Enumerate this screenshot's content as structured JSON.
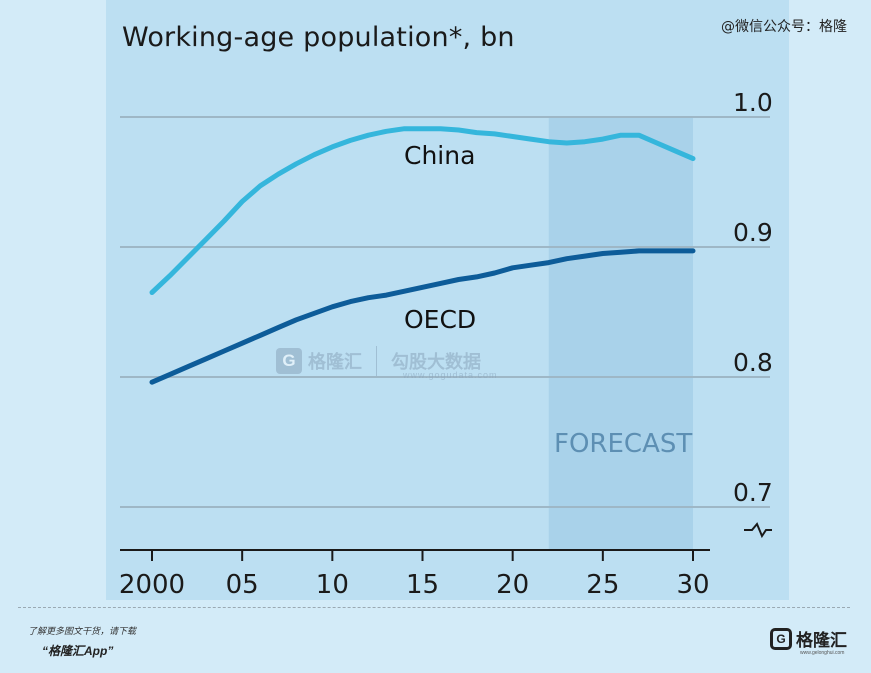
{
  "credit": "@微信公众号：格隆",
  "watermark": {
    "brand": "格隆汇",
    "partner": "勾股大数据",
    "url": "www.gogudata.com"
  },
  "footer": {
    "line1": "了解更多图文干货，请下载",
    "line2": "“格隆汇App”",
    "logo_text": "格隆汇",
    "logo_letter": "G",
    "logo_url": "www.gelonghui.com"
  },
  "colors": {
    "china": "#35b6dc",
    "oecd": "#0d5c99",
    "forecast_shade": "#a9d2ea",
    "gridline": "#9eb7c6",
    "axis": "#1a1a1a",
    "forecast_text": "#5d8fb3"
  },
  "chart_data": {
    "type": "line",
    "title": "Working-age population*, bn",
    "xlim": [
      2000,
      2030
    ],
    "ylim": [
      0.7,
      1.0
    ],
    "xticks": [
      2000,
      2005,
      2010,
      2015,
      2020,
      2025,
      2030
    ],
    "xtick_labels": [
      "2000",
      "05",
      "10",
      "15",
      "20",
      "25",
      "30"
    ],
    "yticks": [
      0.7,
      0.8,
      0.9,
      1.0
    ],
    "ytick_labels": [
      "0.7",
      "0.8",
      "0.9",
      "1.0"
    ],
    "grid": true,
    "axis_break": true,
    "forecast": {
      "label": "FORECAST",
      "from": 2022,
      "to": 2030
    },
    "series": [
      {
        "name": "China",
        "x": [
          2000,
          2001,
          2002,
          2003,
          2004,
          2005,
          2006,
          2007,
          2008,
          2009,
          2010,
          2011,
          2012,
          2013,
          2014,
          2015,
          2016,
          2017,
          2018,
          2019,
          2020,
          2021,
          2022,
          2023,
          2024,
          2025,
          2026,
          2027,
          2028,
          2029,
          2030
        ],
        "y": [
          0.865,
          0.878,
          0.892,
          0.906,
          0.92,
          0.935,
          0.947,
          0.956,
          0.964,
          0.971,
          0.977,
          0.982,
          0.986,
          0.989,
          0.991,
          0.991,
          0.991,
          0.99,
          0.988,
          0.987,
          0.985,
          0.983,
          0.981,
          0.98,
          0.981,
          0.983,
          0.986,
          0.986,
          0.98,
          0.974,
          0.968
        ]
      },
      {
        "name": "OECD",
        "x": [
          2000,
          2001,
          2002,
          2003,
          2004,
          2005,
          2006,
          2007,
          2008,
          2009,
          2010,
          2011,
          2012,
          2013,
          2014,
          2015,
          2016,
          2017,
          2018,
          2019,
          2020,
          2021,
          2022,
          2023,
          2024,
          2025,
          2026,
          2027,
          2028,
          2029,
          2030
        ],
        "y": [
          0.796,
          0.802,
          0.808,
          0.814,
          0.82,
          0.826,
          0.832,
          0.838,
          0.844,
          0.849,
          0.854,
          0.858,
          0.861,
          0.863,
          0.866,
          0.869,
          0.872,
          0.875,
          0.877,
          0.88,
          0.884,
          0.886,
          0.888,
          0.891,
          0.893,
          0.895,
          0.896,
          0.897,
          0.897,
          0.897,
          0.897
        ]
      }
    ]
  }
}
